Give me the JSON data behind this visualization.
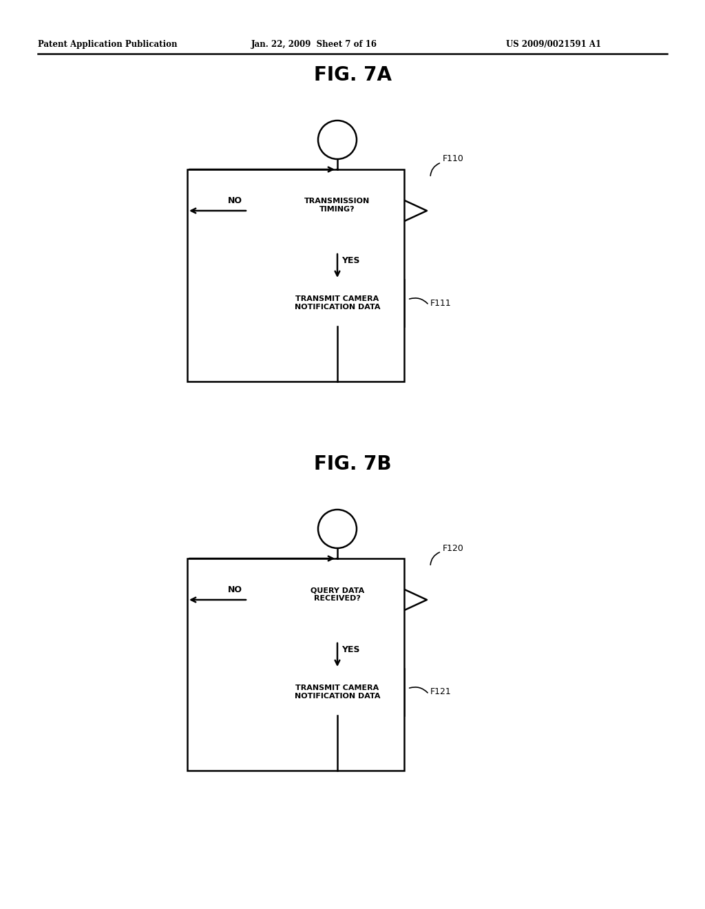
{
  "bg_color": "#ffffff",
  "header_left": "Patent Application Publication",
  "header_mid": "Jan. 22, 2009  Sheet 7 of 16",
  "header_right": "US 2009/0021591 A1",
  "fig7a_title": "FIG. 7A",
  "fig7b_title": "FIG. 7B",
  "line_width": 1.8,
  "font_size_header": 8.5,
  "font_size_title": 20,
  "font_size_label": 8,
  "font_size_ref": 9
}
